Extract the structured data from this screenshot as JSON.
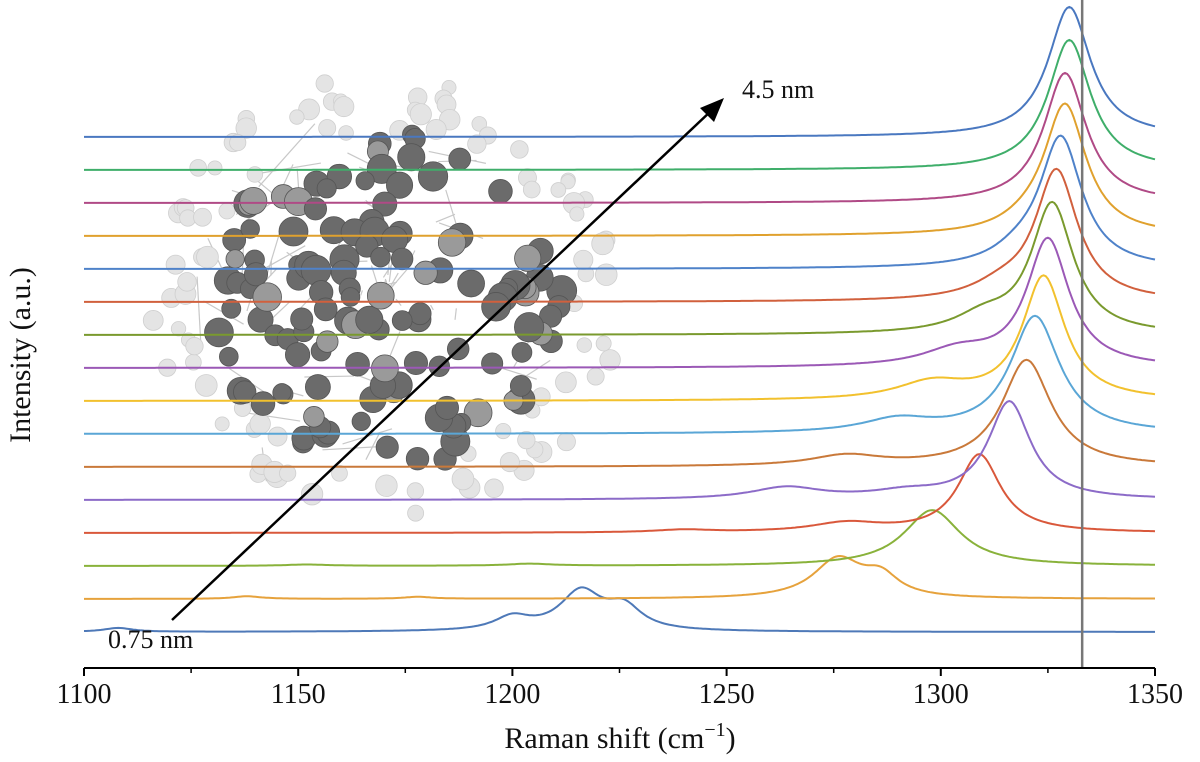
{
  "chart_data": {
    "type": "line",
    "title": "",
    "xlabel": "Raman shift (cm",
    "xlabel_sup": "−1",
    "xlabel_close": ")",
    "ylabel": "Intensity (a.u.)",
    "xlim": [
      1100,
      1350
    ],
    "x_ticks": [
      1100,
      1150,
      1200,
      1250,
      1300,
      1350
    ],
    "y_ticks_shown": false,
    "grid": false,
    "stacked_offset": true,
    "reference_line_x": 1333,
    "annotations": {
      "small": "0.75 nm",
      "large": "4.5 nm"
    },
    "inset": "cluster-structure-illustration",
    "series": [
      {
        "color": "#4e79b8",
        "peaks": [
          [
            1200,
            0.1,
            5
          ],
          [
            1216,
            0.3,
            6
          ],
          [
            1226,
            0.17,
            5
          ],
          [
            1108,
            0.03,
            4
          ]
        ]
      },
      {
        "color": "#e6a23c",
        "peaks": [
          [
            1276,
            0.3,
            7
          ],
          [
            1286,
            0.15,
            5
          ],
          [
            1138,
            0.02,
            4
          ],
          [
            1178,
            0.015,
            4
          ]
        ]
      },
      {
        "color": "#89b23b",
        "peaks": [
          [
            1298,
            0.43,
            8
          ],
          [
            1152,
            0.01,
            6
          ],
          [
            1204,
            0.015,
            6
          ]
        ]
      },
      {
        "color": "#d9583b",
        "peaks": [
          [
            1309,
            0.6,
            6
          ],
          [
            1278,
            0.07,
            10
          ],
          [
            1240,
            0.02,
            8
          ]
        ]
      },
      {
        "color": "#8c6bc8",
        "peaks": [
          [
            1316,
            0.75,
            6
          ],
          [
            1264,
            0.09,
            10
          ],
          [
            1292,
            0.05,
            10
          ]
        ]
      },
      {
        "color": "#c9793a",
        "peaks": [
          [
            1320,
            0.82,
            7
          ],
          [
            1278,
            0.08,
            10
          ]
        ]
      },
      {
        "color": "#5aa6d6",
        "peaks": [
          [
            1322,
            0.9,
            7
          ],
          [
            1290,
            0.1,
            10
          ]
        ]
      },
      {
        "color": "#f2c12e",
        "peaks": [
          [
            1324,
            0.95,
            6
          ],
          [
            1298,
            0.13,
            10
          ]
        ]
      },
      {
        "color": "#9b59b6",
        "peaks": [
          [
            1325,
            0.98,
            6
          ],
          [
            1304,
            0.12,
            10
          ]
        ]
      },
      {
        "color": "#7a9a2e",
        "peaks": [
          [
            1326,
            1.0,
            6
          ],
          [
            1310,
            0.12,
            8
          ]
        ]
      },
      {
        "color": "#d1603d",
        "peaks": [
          [
            1327,
            1.0,
            6
          ],
          [
            1314,
            0.09,
            8
          ]
        ]
      },
      {
        "color": "#4f82c9",
        "peaks": [
          [
            1328,
            1.0,
            6
          ],
          [
            1318,
            0.08,
            7
          ]
        ]
      },
      {
        "color": "#e0a12e",
        "peaks": [
          [
            1329,
            1.0,
            6
          ],
          [
            1320,
            0.05,
            7
          ]
        ]
      },
      {
        "color": "#b04a86",
        "peaks": [
          [
            1329,
            1.0,
            6
          ]
        ]
      },
      {
        "color": "#3fae6a",
        "peaks": [
          [
            1330,
            1.0,
            6
          ]
        ]
      },
      {
        "color": "#4a78c0",
        "peaks": [
          [
            1330,
            1.0,
            6
          ]
        ]
      }
    ]
  }
}
